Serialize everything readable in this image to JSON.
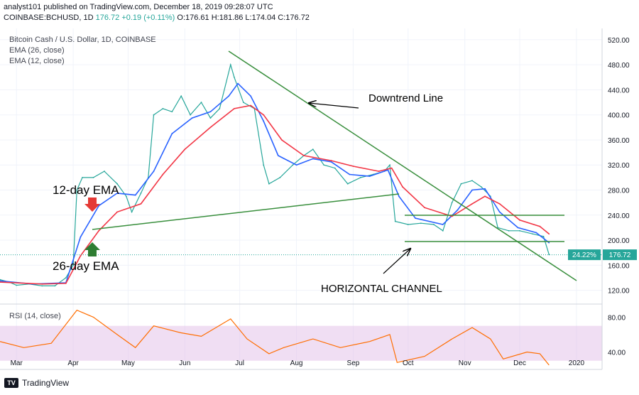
{
  "header": {
    "line1": "analyst101 published on TradingView.com, December 18, 2019 09:28:07 UTC",
    "line2_symbol": "COINBASE:BCHUSD, 1D",
    "line2_price": "176.72",
    "line2_change": "+0.19 (+0.11%)",
    "line2_ohlc": "O:176.61 H:181.86 L:174.04 C:176.72"
  },
  "footer": {
    "brand": "TradingView"
  },
  "chart_data": {
    "type": "line",
    "title": "Bitcoin Cash / U.S. Dollar, 1D, COINBASE",
    "legend": [
      "EMA (26, close)",
      "EMA (12, close)"
    ],
    "x_ticks": [
      "Mar",
      "Apr",
      "May",
      "Jun",
      "Jul",
      "Aug",
      "Sep",
      "Oct",
      "Nov",
      "Dec",
      "2020"
    ],
    "y_ticks": [
      120,
      160,
      200,
      240,
      280,
      320,
      360,
      400,
      440,
      480,
      520
    ],
    "y_tick_labels": [
      "120.00",
      "160.00",
      "200.00",
      "240.00",
      "280.00",
      "320.00",
      "360.00",
      "400.00",
      "440.00",
      "480.00",
      "520.00"
    ],
    "ylim": [
      98,
      538
    ],
    "last_price": 176.72,
    "last_price_label": "176.72",
    "last_change_label": "24.22%",
    "x_days": {
      "start": "2019-02-20",
      "end": "2020-01-15"
    },
    "series": [
      {
        "name": "BCHUSD",
        "color": "#26a69a",
        "points": [
          [
            "2019-02-20",
            137
          ],
          [
            "2019-02-25",
            133
          ],
          [
            "2019-03-01",
            128
          ],
          [
            "2019-03-08",
            130
          ],
          [
            "2019-03-15",
            127
          ],
          [
            "2019-03-22",
            127
          ],
          [
            "2019-03-28",
            140
          ],
          [
            "2019-04-01",
            160
          ],
          [
            "2019-04-03",
            280
          ],
          [
            "2019-04-06",
            300
          ],
          [
            "2019-04-12",
            300
          ],
          [
            "2019-04-18",
            310
          ],
          [
            "2019-04-25",
            290
          ],
          [
            "2019-04-30",
            270
          ],
          [
            "2019-05-03",
            245
          ],
          [
            "2019-05-08",
            275
          ],
          [
            "2019-05-12",
            300
          ],
          [
            "2019-05-15",
            400
          ],
          [
            "2019-05-20",
            410
          ],
          [
            "2019-05-25",
            405
          ],
          [
            "2019-05-30",
            430
          ],
          [
            "2019-06-04",
            400
          ],
          [
            "2019-06-10",
            420
          ],
          [
            "2019-06-15",
            395
          ],
          [
            "2019-06-20",
            410
          ],
          [
            "2019-06-26",
            480
          ],
          [
            "2019-06-28",
            460
          ],
          [
            "2019-07-03",
            420
          ],
          [
            "2019-07-09",
            410
          ],
          [
            "2019-07-14",
            320
          ],
          [
            "2019-07-17",
            290
          ],
          [
            "2019-07-23",
            300
          ],
          [
            "2019-07-30",
            320
          ],
          [
            "2019-08-05",
            335
          ],
          [
            "2019-08-10",
            345
          ],
          [
            "2019-08-16",
            320
          ],
          [
            "2019-08-22",
            315
          ],
          [
            "2019-08-29",
            290
          ],
          [
            "2019-09-05",
            300
          ],
          [
            "2019-09-12",
            305
          ],
          [
            "2019-09-18",
            310
          ],
          [
            "2019-09-21",
            320
          ],
          [
            "2019-09-24",
            230
          ],
          [
            "2019-10-01",
            225
          ],
          [
            "2019-10-08",
            227
          ],
          [
            "2019-10-15",
            225
          ],
          [
            "2019-10-20",
            215
          ],
          [
            "2019-10-25",
            260
          ],
          [
            "2019-10-30",
            290
          ],
          [
            "2019-11-05",
            295
          ],
          [
            "2019-11-10",
            285
          ],
          [
            "2019-11-15",
            270
          ],
          [
            "2019-11-19",
            220
          ],
          [
            "2019-11-25",
            215
          ],
          [
            "2019-12-01",
            215
          ],
          [
            "2019-12-08",
            210
          ],
          [
            "2019-12-14",
            206
          ],
          [
            "2019-12-17",
            177
          ]
        ]
      },
      {
        "name": "EMA (12, close)",
        "color": "#2962ff",
        "points": [
          [
            "2019-02-20",
            135
          ],
          [
            "2019-03-10",
            130
          ],
          [
            "2019-03-28",
            132
          ],
          [
            "2019-04-05",
            205
          ],
          [
            "2019-04-15",
            255
          ],
          [
            "2019-04-25",
            275
          ],
          [
            "2019-05-05",
            272
          ],
          [
            "2019-05-15",
            310
          ],
          [
            "2019-05-25",
            370
          ],
          [
            "2019-06-05",
            395
          ],
          [
            "2019-06-15",
            405
          ],
          [
            "2019-06-25",
            430
          ],
          [
            "2019-06-30",
            450
          ],
          [
            "2019-07-07",
            430
          ],
          [
            "2019-07-14",
            390
          ],
          [
            "2019-07-22",
            335
          ],
          [
            "2019-08-01",
            320
          ],
          [
            "2019-08-10",
            330
          ],
          [
            "2019-08-20",
            325
          ],
          [
            "2019-08-30",
            305
          ],
          [
            "2019-09-10",
            302
          ],
          [
            "2019-09-20",
            312
          ],
          [
            "2019-09-26",
            270
          ],
          [
            "2019-10-05",
            235
          ],
          [
            "2019-10-20",
            225
          ],
          [
            "2019-10-28",
            248
          ],
          [
            "2019-11-05",
            280
          ],
          [
            "2019-11-12",
            282
          ],
          [
            "2019-11-20",
            245
          ],
          [
            "2019-11-30",
            220
          ],
          [
            "2019-12-10",
            212
          ],
          [
            "2019-12-17",
            196
          ]
        ]
      },
      {
        "name": "EMA (26, close)",
        "color": "#f23645",
        "points": [
          [
            "2019-02-20",
            133
          ],
          [
            "2019-03-15",
            130
          ],
          [
            "2019-03-28",
            131
          ],
          [
            "2019-04-05",
            175
          ],
          [
            "2019-04-15",
            215
          ],
          [
            "2019-04-25",
            245
          ],
          [
            "2019-05-08",
            258
          ],
          [
            "2019-05-20",
            305
          ],
          [
            "2019-06-01",
            345
          ],
          [
            "2019-06-15",
            380
          ],
          [
            "2019-06-28",
            410
          ],
          [
            "2019-07-07",
            415
          ],
          [
            "2019-07-14",
            400
          ],
          [
            "2019-07-24",
            360
          ],
          [
            "2019-08-05",
            335
          ],
          [
            "2019-08-20",
            327
          ],
          [
            "2019-09-01",
            318
          ],
          [
            "2019-09-15",
            310
          ],
          [
            "2019-09-22",
            315
          ],
          [
            "2019-09-28",
            285
          ],
          [
            "2019-10-10",
            252
          ],
          [
            "2019-10-25",
            238
          ],
          [
            "2019-11-05",
            258
          ],
          [
            "2019-11-12",
            270
          ],
          [
            "2019-11-20",
            258
          ],
          [
            "2019-12-01",
            232
          ],
          [
            "2019-12-12",
            222
          ],
          [
            "2019-12-17",
            210
          ]
        ]
      }
    ],
    "rsi": {
      "title": "RSI (14, close)",
      "ylim": [
        20,
        95
      ],
      "band": [
        30,
        70
      ],
      "y_ticks": [
        40,
        80
      ],
      "y_tick_labels": [
        "40.00",
        "80.00"
      ],
      "values_dates": [
        [
          "2019-02-20",
          52
        ],
        [
          "2019-03-05",
          45
        ],
        [
          "2019-03-20",
          50
        ],
        [
          "2019-04-03",
          88
        ],
        [
          "2019-04-12",
          80
        ],
        [
          "2019-04-25",
          60
        ],
        [
          "2019-05-05",
          45
        ],
        [
          "2019-05-15",
          70
        ],
        [
          "2019-05-30",
          62
        ],
        [
          "2019-06-10",
          58
        ],
        [
          "2019-06-26",
          78
        ],
        [
          "2019-07-05",
          55
        ],
        [
          "2019-07-17",
          38
        ],
        [
          "2019-07-25",
          45
        ],
        [
          "2019-08-10",
          55
        ],
        [
          "2019-08-25",
          45
        ],
        [
          "2019-09-10",
          52
        ],
        [
          "2019-09-21",
          60
        ],
        [
          "2019-09-25",
          28
        ],
        [
          "2019-10-10",
          35
        ],
        [
          "2019-10-25",
          55
        ],
        [
          "2019-11-05",
          68
        ],
        [
          "2019-11-15",
          55
        ],
        [
          "2019-11-22",
          32
        ],
        [
          "2019-12-05",
          40
        ],
        [
          "2019-12-12",
          38
        ],
        [
          "2019-12-17",
          25
        ]
      ]
    },
    "annotations": [
      {
        "text": "Downtrend Line"
      },
      {
        "text": "12-day EMA"
      },
      {
        "text": "26-day EMA"
      },
      {
        "text": "HORIZONTAL CHANNEL"
      }
    ]
  }
}
